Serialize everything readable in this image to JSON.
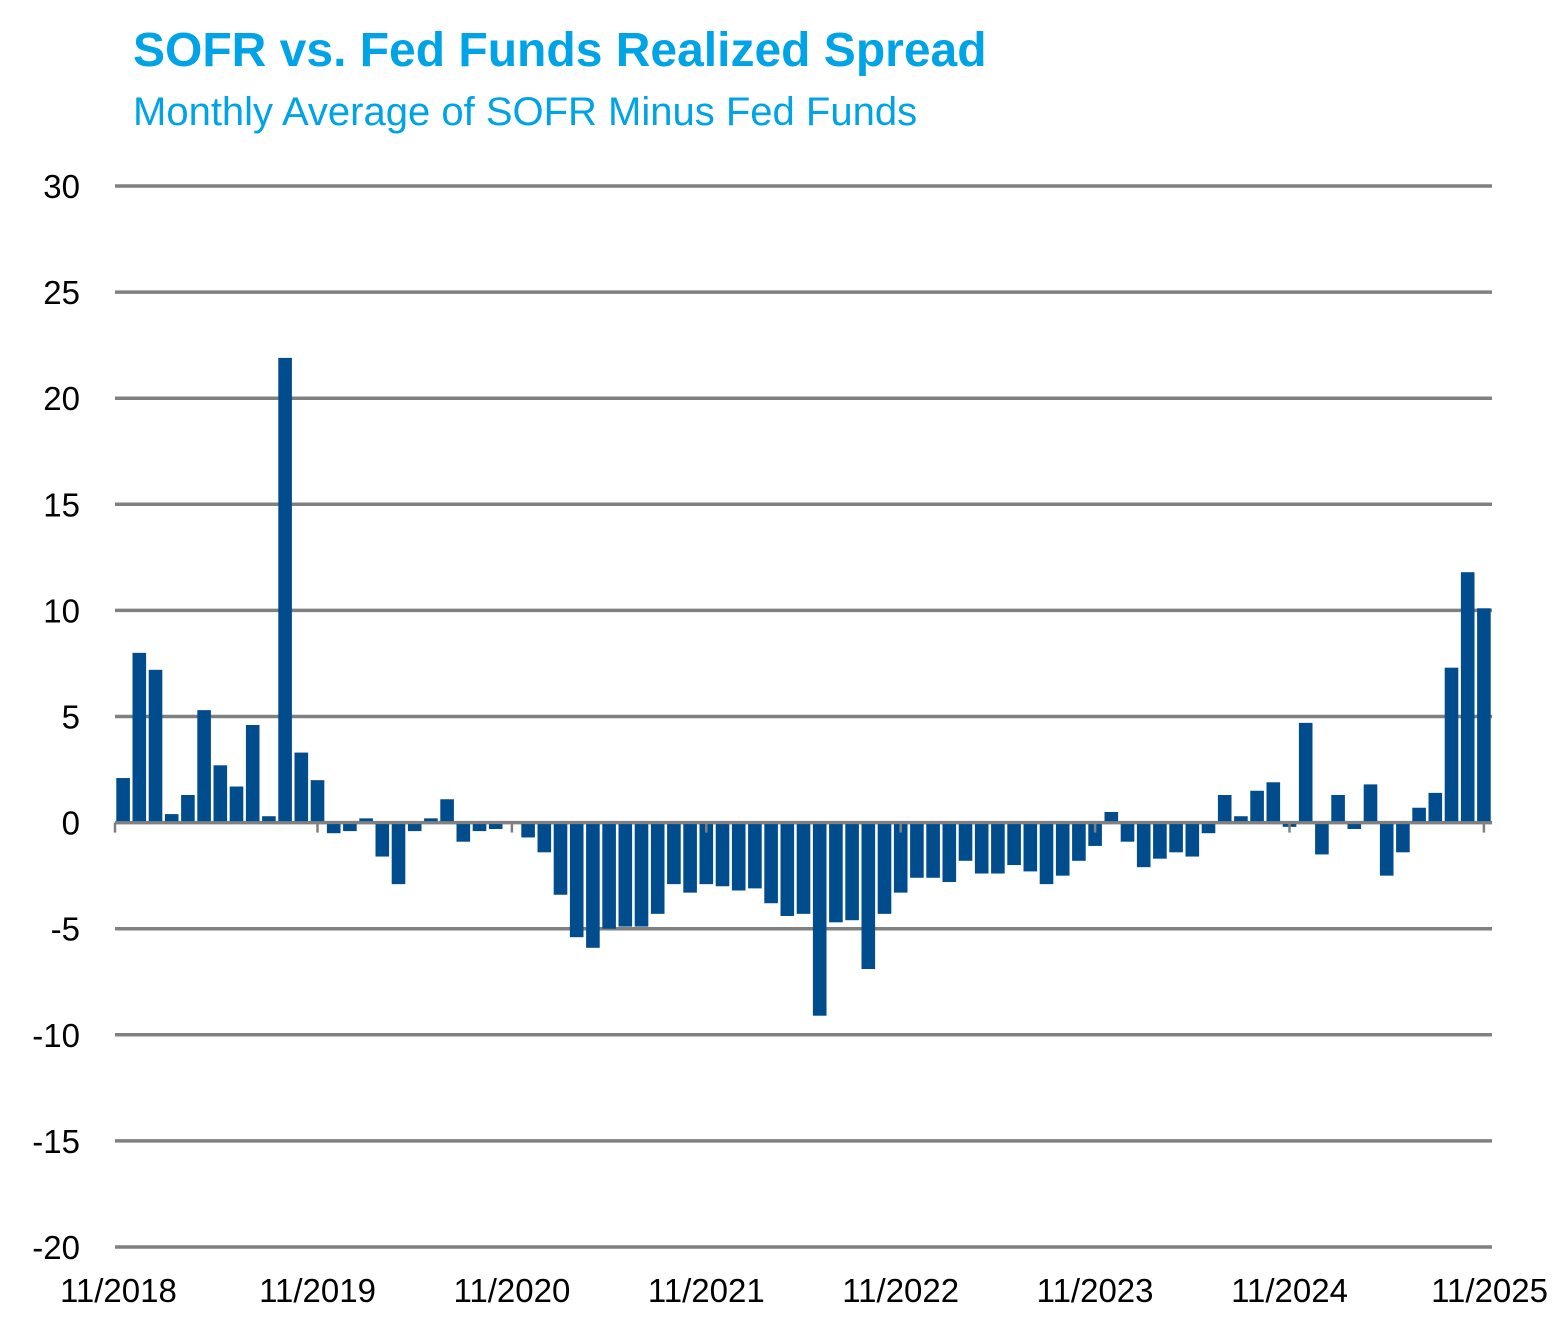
{
  "colors": {
    "title": "#00A3E6",
    "bar": "#004C8C",
    "grid": "#808080",
    "axis": "#808080",
    "text": "#000000"
  },
  "chart_data": {
    "type": "bar",
    "title": "SOFR vs. Fed Funds Realized Spread",
    "subtitle": "Monthly Average of SOFR Minus Fed Funds",
    "xlabel": "",
    "ylabel": "",
    "ylim": [
      -20,
      30
    ],
    "yticks": [
      30,
      25,
      20,
      15,
      10,
      5,
      0,
      -5,
      -10,
      -15,
      -20
    ],
    "ytick_labels": [
      "30",
      "25",
      "20",
      "15",
      "10",
      "5",
      "0",
      "-5",
      "-10",
      "-15",
      "-20"
    ],
    "xtick_labels": [
      "11/2018",
      "11/2019",
      "11/2020",
      "11/2021",
      "11/2022",
      "11/2023",
      "11/2024",
      "11/2025"
    ],
    "grid": true,
    "series": [
      {
        "name": "SOFR minus Fed Funds (monthly average)",
        "values": [
          2.1,
          8.0,
          7.2,
          0.4,
          1.3,
          5.3,
          2.7,
          1.7,
          4.6,
          0.3,
          21.9,
          3.3,
          2.0,
          -0.5,
          -0.4,
          0.2,
          -1.6,
          -2.9,
          -0.4,
          0.2,
          1.1,
          -0.9,
          -0.4,
          -0.3,
          0.0,
          -0.7,
          -1.4,
          -3.4,
          -5.4,
          -5.9,
          -5.0,
          -4.9,
          -4.9,
          -4.3,
          -2.9,
          -3.3,
          -2.9,
          -3.0,
          -3.2,
          -3.1,
          -3.8,
          -4.4,
          -4.3,
          -9.1,
          -4.7,
          -4.6,
          -6.9,
          -4.3,
          -3.3,
          -2.6,
          -2.6,
          -2.8,
          -1.8,
          -2.4,
          -2.4,
          -2.0,
          -2.3,
          -2.9,
          -2.5,
          -1.8,
          -1.1,
          0.5,
          -0.9,
          -2.1,
          -1.7,
          -1.4,
          -1.6,
          -0.5,
          1.3,
          0.3,
          1.5,
          1.9,
          -0.2,
          4.7,
          -1.5,
          1.3,
          -0.3,
          1.8,
          -2.5,
          -1.4,
          0.7,
          1.4,
          7.3,
          11.8,
          10.1
        ]
      }
    ]
  }
}
